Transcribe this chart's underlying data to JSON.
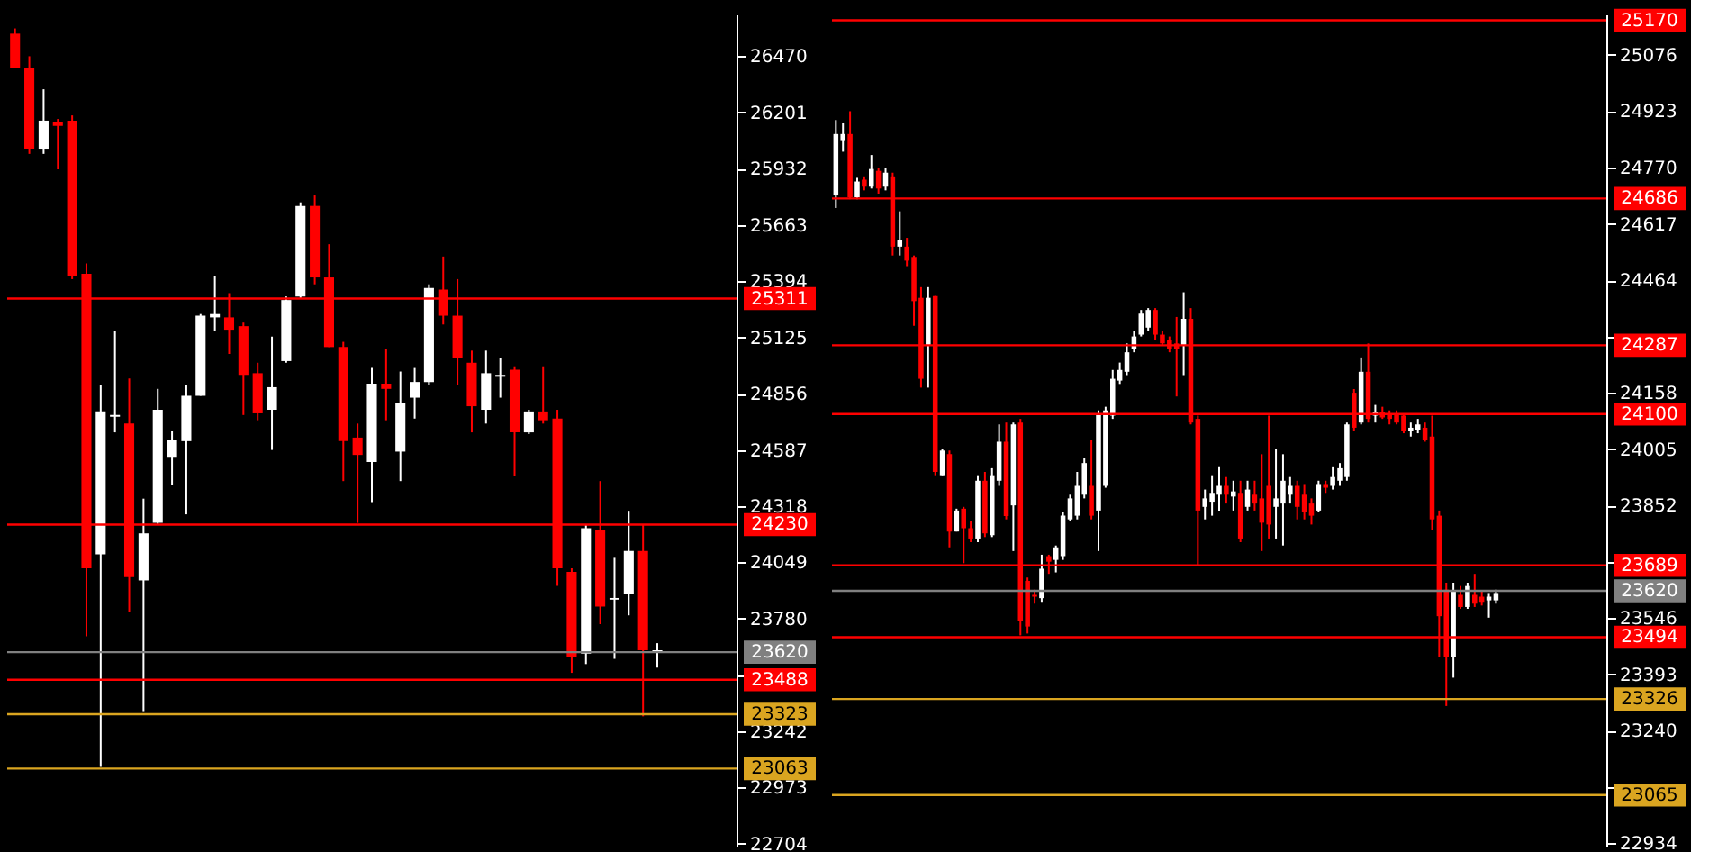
{
  "chart_data": [
    {
      "type": "candlestick",
      "tick_labels": "y",
      "grid": false,
      "categories": [
        null,
        null,
        null,
        null,
        null,
        null,
        null,
        null,
        null,
        null,
        null,
        null,
        null,
        null,
        null,
        null,
        null,
        null,
        null,
        null,
        null,
        null,
        null,
        null,
        null,
        null,
        null,
        null,
        null,
        null,
        null,
        null,
        null,
        null,
        null,
        null,
        null,
        null,
        null,
        null,
        null,
        null,
        null,
        null,
        null,
        null,
        null,
        null,
        null,
        null,
        null
      ],
      "ohlc": [
        [
          26578,
          26603,
          26412,
          26412
        ],
        [
          26412,
          26470,
          26003,
          26028
        ],
        [
          26028,
          26312,
          26003,
          26162
        ],
        [
          26153,
          26170,
          25929,
          26137
        ],
        [
          26162,
          26187,
          25404,
          25420
        ],
        [
          25429,
          25479,
          23696,
          24021
        ],
        [
          24088,
          24896,
          23071,
          24771
        ],
        [
          24746,
          25154,
          24671,
          24754
        ],
        [
          24713,
          24929,
          23813,
          23979
        ],
        [
          23963,
          24354,
          23338,
          24188
        ],
        [
          24238,
          24879,
          24229,
          24779
        ],
        [
          24554,
          24679,
          24421,
          24637
        ],
        [
          24629,
          24896,
          24279,
          24846
        ],
        [
          24846,
          25237,
          24846,
          25229
        ],
        [
          25221,
          25420,
          25154,
          25237
        ],
        [
          25221,
          25337,
          25046,
          25162
        ],
        [
          25179,
          25196,
          24754,
          24946
        ],
        [
          24954,
          25004,
          24729,
          24762
        ],
        [
          24779,
          25129,
          24587,
          24887
        ],
        [
          25012,
          25321,
          25004,
          25304
        ],
        [
          25321,
          25771,
          25312,
          25754
        ],
        [
          25754,
          25804,
          25379,
          25412
        ],
        [
          25412,
          25571,
          25079,
          25079
        ],
        [
          25079,
          25104,
          24438,
          24629
        ],
        [
          24646,
          24713,
          24238,
          24563
        ],
        [
          24529,
          24979,
          24338,
          24904
        ],
        [
          24904,
          25071,
          24729,
          24879
        ],
        [
          24579,
          24962,
          24438,
          24813
        ],
        [
          24837,
          24979,
          24737,
          24912
        ],
        [
          24912,
          25379,
          24896,
          25362
        ],
        [
          25354,
          25512,
          25187,
          25229
        ],
        [
          25229,
          25404,
          24896,
          25029
        ],
        [
          25004,
          25062,
          24671,
          24796
        ],
        [
          24779,
          25062,
          24713,
          24954
        ],
        [
          24937,
          25029,
          24837,
          24946
        ],
        [
          24971,
          24987,
          24463,
          24671
        ],
        [
          24671,
          24779,
          24663,
          24771
        ],
        [
          24771,
          24987,
          24713,
          24729
        ],
        [
          24737,
          24779,
          23937,
          24021
        ],
        [
          24004,
          24021,
          23521,
          23596
        ],
        [
          23613,
          24229,
          23563,
          24213
        ],
        [
          24204,
          24438,
          23754,
          23838
        ],
        [
          23871,
          24071,
          23588,
          23879
        ],
        [
          23896,
          24296,
          23796,
          24104
        ],
        [
          24104,
          24229,
          23313,
          23629
        ],
        [
          23623,
          23663,
          23546,
          23629
        ],
        null,
        null,
        null,
        null,
        null
      ],
      "colors": [
        "#ff0000",
        "#ff0000",
        "#ffffff",
        "#ff0000",
        "#ff0000",
        "#ff0000",
        "#ffffff",
        "#ffffff",
        "#ff0000",
        "#ffffff",
        "#ffffff",
        "#ffffff",
        "#ffffff",
        "#ffffff",
        "#ffffff",
        "#ff0000",
        "#ff0000",
        "#ff0000",
        "#ffffff",
        "#ffffff",
        "#ffffff",
        "#ff0000",
        "#ff0000",
        "#ff0000",
        "#ff0000",
        "#ffffff",
        "#ff0000",
        "#ffffff",
        "#ffffff",
        "#ffffff",
        "#ff0000",
        "#ff0000",
        "#ff0000",
        "#ffffff",
        "#ffffff",
        "#ff0000",
        "#ffffff",
        "#ff0000",
        "#ff0000",
        "#ff0000",
        "#ffffff",
        "#ff0000",
        "#ffffff",
        "#ffffff",
        "#ff0000",
        "#ffffff",
        null,
        null,
        null,
        null,
        null
      ],
      "ylim": [
        22690,
        26670
      ],
      "yticks": [
        26470,
        26201,
        25932,
        25663,
        25394,
        25125,
        24856,
        24587,
        24318,
        24049,
        23780,
        {
          "value": 23511,
          "label": null
        },
        23242,
        22973,
        22704
      ],
      "ref_lines": [
        {
          "axis": "y",
          "value": 25311,
          "label": "25311",
          "color": "#ff0000"
        },
        {
          "axis": "y",
          "value": 24230,
          "label": "24230",
          "color": "#ff0000"
        },
        {
          "axis": "y",
          "value": 23620,
          "label": "23620",
          "color": "#808080"
        },
        {
          "axis": "y",
          "value": 23488,
          "label": "23488",
          "color": "#ff0000"
        },
        {
          "axis": "y",
          "value": 23323,
          "label": "23323",
          "color": "#daa520"
        },
        {
          "axis": "y",
          "value": 23063,
          "label": "23063",
          "color": "#daa520"
        }
      ]
    },
    {
      "type": "candlestick",
      "tick_labels": "y",
      "grid": false,
      "categories": [
        null,
        null,
        null,
        null,
        null,
        null,
        null,
        null,
        null,
        null,
        null,
        null,
        null,
        null,
        null,
        null,
        null,
        null,
        null,
        null,
        null,
        null,
        null,
        null,
        null,
        null,
        null,
        null,
        null,
        null,
        null,
        null,
        null,
        null,
        null,
        null,
        null,
        null,
        null,
        null,
        null,
        null,
        null,
        null,
        null,
        null,
        null,
        null,
        null,
        null,
        null,
        null,
        null,
        null,
        null,
        null,
        null,
        null,
        null,
        null,
        null,
        null,
        null,
        null,
        null,
        null,
        null,
        null,
        null,
        null,
        null,
        null,
        null,
        null,
        null,
        null,
        null,
        null,
        null,
        null,
        null,
        null,
        null,
        null,
        null,
        null,
        null,
        null,
        null,
        null,
        null,
        null,
        null,
        null,
        null,
        null,
        null,
        null,
        null,
        null,
        null,
        null,
        null,
        null,
        null,
        null,
        null,
        null,
        null
      ],
      "ohlc": [
        [
          24694,
          24899,
          24660,
          24861
        ],
        [
          24842,
          24890,
          24813,
          24861
        ],
        [
          24861,
          24923,
          24684,
          24689
        ],
        [
          24689,
          24742,
          24684,
          24732
        ],
        [
          24737,
          24746,
          24708,
          24718
        ],
        [
          24718,
          24804,
          24713,
          24766
        ],
        [
          24761,
          24770,
          24699,
          24713
        ],
        [
          24718,
          24770,
          24708,
          24756
        ],
        [
          24746,
          24756,
          24531,
          24555
        ],
        [
          24555,
          24651,
          24531,
          24574
        ],
        [
          24555,
          24579,
          24502,
          24517
        ],
        [
          24527,
          24531,
          24340,
          24407
        ],
        [
          24416,
          24445,
          24172,
          24196
        ],
        [
          24287,
          24445,
          24172,
          24416
        ],
        [
          24421,
          24421,
          23934,
          23943
        ],
        [
          23934,
          24006,
          23934,
          24001
        ],
        [
          23991,
          24001,
          23738,
          23781
        ],
        [
          23781,
          23843,
          23781,
          23838
        ],
        [
          23843,
          23848,
          23695,
          23790
        ],
        [
          23790,
          23809,
          23752,
          23762
        ],
        [
          23762,
          23934,
          23752,
          23919
        ],
        [
          23919,
          23943,
          23766,
          23776
        ],
        [
          23771,
          23953,
          23766,
          23934
        ],
        [
          23919,
          24072,
          23905,
          24025
        ],
        [
          24025,
          24077,
          23814,
          23823
        ],
        [
          23852,
          24077,
          23728,
          24072
        ],
        [
          24077,
          24087,
          23499,
          23537
        ],
        [
          23647,
          23656,
          23504,
          23523
        ],
        [
          23609,
          23623,
          23585,
          23604
        ],
        [
          23600,
          23718,
          23590,
          23680
        ],
        [
          23714,
          23718,
          23666,
          23699
        ],
        [
          23704,
          23743,
          23670,
          23738
        ],
        [
          23714,
          23833,
          23704,
          23824
        ],
        [
          23814,
          23881,
          23809,
          23871
        ],
        [
          23824,
          23943,
          23814,
          23905
        ],
        [
          23881,
          23982,
          23871,
          23967
        ],
        [
          23905,
          24029,
          23814,
          23824
        ],
        [
          23838,
          24110,
          23728,
          24101
        ],
        [
          23905,
          24120,
          23900,
          24110
        ],
        [
          24096,
          24220,
          24087,
          24196
        ],
        [
          24191,
          24240,
          24182,
          24220
        ],
        [
          24215,
          24292,
          24206,
          24268
        ],
        [
          24278,
          24326,
          24268,
          24311
        ],
        [
          24316,
          24383,
          24311,
          24373
        ],
        [
          24335,
          24388,
          24326,
          24383
        ],
        [
          24383,
          24388,
          24302,
          24316
        ],
        [
          24316,
          24326,
          24287,
          24292
        ],
        [
          24302,
          24311,
          24268,
          24278
        ],
        [
          24292,
          24364,
          24148,
          24278
        ],
        [
          24287,
          24431,
          24206,
          24359
        ],
        [
          24359,
          24388,
          24072,
          24077
        ],
        [
          24087,
          24096,
          23690,
          23838
        ],
        [
          23848,
          23895,
          23814,
          23871
        ],
        [
          23862,
          23934,
          23824,
          23886
        ],
        [
          23881,
          23958,
          23838,
          23905
        ],
        [
          23905,
          23929,
          23857,
          23881
        ],
        [
          23876,
          23919,
          23838,
          23890
        ],
        [
          23886,
          23919,
          23752,
          23762
        ],
        [
          23848,
          23919,
          23838,
          23895
        ],
        [
          23881,
          23919,
          23838,
          23857
        ],
        [
          23871,
          23991,
          23728,
          23805
        ],
        [
          23905,
          24096,
          23762,
          23800
        ],
        [
          23848,
          24006,
          23762,
          23871
        ],
        [
          23857,
          23991,
          23743,
          23919
        ],
        [
          23881,
          23929,
          23857,
          23905
        ],
        [
          23905,
          23919,
          23814,
          23848
        ],
        [
          23881,
          23910,
          23814,
          23833
        ],
        [
          23857,
          23871,
          23800,
          23824
        ],
        [
          23838,
          23919,
          23833,
          23910
        ],
        [
          23910,
          23919,
          23886,
          23900
        ],
        [
          23905,
          23958,
          23895,
          23929
        ],
        [
          23919,
          23967,
          23905,
          23953
        ],
        [
          23929,
          24077,
          23919,
          24072
        ],
        [
          24158,
          24168,
          24053,
          24063
        ],
        [
          24077,
          24254,
          24072,
          24215
        ],
        [
          24215,
          24292,
          24077,
          24087
        ],
        [
          24096,
          24125,
          24077,
          24106
        ],
        [
          24106,
          24120,
          24087,
          24091
        ],
        [
          24101,
          24110,
          24072,
          24087
        ],
        [
          24101,
          24110,
          24072,
          24077
        ],
        [
          24096,
          24101,
          24048,
          24053
        ],
        [
          24053,
          24077,
          24039,
          24063
        ],
        [
          24058,
          24087,
          24048,
          24072
        ],
        [
          24063,
          24077,
          24025,
          24029
        ],
        [
          24039,
          24096,
          23785,
          23814
        ],
        [
          23824,
          23838,
          23441,
          23551
        ],
        [
          23623,
          23642,
          23307,
          23441
        ],
        [
          23441,
          23642,
          23384,
          23618
        ],
        [
          23609,
          23633,
          23571,
          23576
        ],
        [
          23576,
          23642,
          23571,
          23633
        ],
        [
          23609,
          23666,
          23576,
          23585
        ],
        [
          23604,
          23618,
          23580,
          23590
        ],
        [
          23594,
          23614,
          23547,
          23604
        ],
        [
          23594,
          23623,
          23585,
          23614
        ],
        null,
        null,
        null,
        null,
        null,
        null,
        null,
        null,
        null,
        null,
        null,
        null,
        null,
        null,
        null
      ],
      "colors": [
        "#ffffff",
        "#ffffff",
        "#ff0000",
        "#ffffff",
        "#ff0000",
        "#ffffff",
        "#ff0000",
        "#ffffff",
        "#ff0000",
        "#ffffff",
        "#ff0000",
        "#ff0000",
        "#ff0000",
        "#ffffff",
        "#ff0000",
        "#ffffff",
        "#ff0000",
        "#ffffff",
        "#ff0000",
        "#ff0000",
        "#ffffff",
        "#ff0000",
        "#ffffff",
        "#ffffff",
        "#ff0000",
        "#ffffff",
        "#ff0000",
        "#ff0000",
        "#ff0000",
        "#ffffff",
        "#ff0000",
        "#ffffff",
        "#ffffff",
        "#ffffff",
        "#ffffff",
        "#ffffff",
        "#ff0000",
        "#ffffff",
        "#ffffff",
        "#ffffff",
        "#ffffff",
        "#ffffff",
        "#ffffff",
        "#ffffff",
        "#ffffff",
        "#ff0000",
        "#ff0000",
        "#ff0000",
        "#ff0000",
        "#ffffff",
        "#ff0000",
        "#ff0000",
        "#ffffff",
        "#ffffff",
        "#ffffff",
        "#ff0000",
        "#ffffff",
        "#ff0000",
        "#ffffff",
        "#ff0000",
        "#ff0000",
        "#ff0000",
        "#ffffff",
        "#ffffff",
        "#ffffff",
        "#ff0000",
        "#ff0000",
        "#ff0000",
        "#ffffff",
        "#ff0000",
        "#ffffff",
        "#ffffff",
        "#ffffff",
        "#ff0000",
        "#ffffff",
        "#ff0000",
        "#ffffff",
        "#ff0000",
        "#ff0000",
        "#ff0000",
        "#ff0000",
        "#ffffff",
        "#ffffff",
        "#ff0000",
        "#ff0000",
        "#ff0000",
        "#ff0000",
        "#ffffff",
        "#ff0000",
        "#ffffff",
        "#ff0000",
        "#ff0000",
        "#ffffff",
        "#ffffff",
        null,
        null,
        null,
        null,
        null,
        null,
        null,
        null,
        null,
        null,
        null,
        null,
        null,
        null,
        null
      ],
      "ylim": [
        22925,
        25186
      ],
      "yticks": [
        25076,
        24923,
        24770,
        24617,
        24464,
        {
          "value": 24311,
          "label": null
        },
        24158,
        24005,
        23852,
        {
          "value": 23699,
          "label": null
        },
        23546,
        23393,
        23240,
        {
          "value": 23087,
          "label": null
        },
        22934
      ],
      "ref_lines": [
        {
          "axis": "y",
          "value": 25170,
          "label": "25170",
          "color": "#ff0000"
        },
        {
          "axis": "y",
          "value": 24686,
          "label": "24686",
          "color": "#ff0000"
        },
        {
          "axis": "y",
          "value": 24287,
          "label": "24287",
          "color": "#ff0000"
        },
        {
          "axis": "y",
          "value": 24100,
          "label": "24100",
          "color": "#ff0000"
        },
        {
          "axis": "y",
          "value": 23689,
          "label": "23689",
          "color": "#ff0000"
        },
        {
          "axis": "y",
          "value": 23620,
          "label": "23620",
          "color": "#808080"
        },
        {
          "axis": "y",
          "value": 23494,
          "label": "23494",
          "color": "#ff0000"
        },
        {
          "axis": "y",
          "value": 23326,
          "label": "23326",
          "color": "#daa520"
        },
        {
          "axis": "y",
          "value": 23065,
          "label": "23065",
          "color": "#daa520"
        }
      ]
    }
  ]
}
